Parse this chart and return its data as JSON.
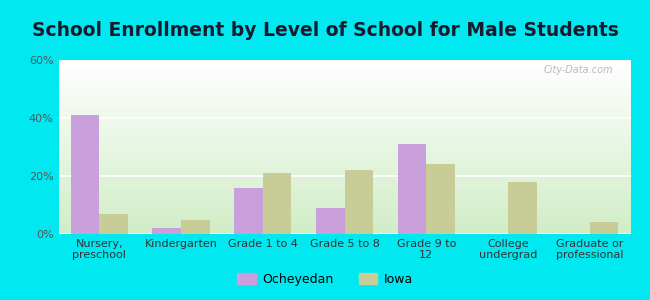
{
  "title": "School Enrollment by Level of School for Male Students",
  "categories": [
    "Nursery,\npreschool",
    "Kindergarten",
    "Grade 1 to 4",
    "Grade 5 to 8",
    "Grade 9 to\n12",
    "College\nundergrad",
    "Graduate or\nprofessional"
  ],
  "ocheyedan": [
    41,
    2,
    16,
    9,
    31,
    0,
    0
  ],
  "iowa": [
    7,
    5,
    21,
    22,
    24,
    18,
    4
  ],
  "bar_color_ocheyedan": "#c9a0dc",
  "bar_color_iowa": "#c8cc96",
  "background_outer": "#00e8f0",
  "ylim": [
    0,
    60
  ],
  "yticks": [
    0,
    20,
    40,
    60
  ],
  "ytick_labels": [
    "0%",
    "20%",
    "40%",
    "60%"
  ],
  "legend_ocheyedan": "Ocheyedan",
  "legend_iowa": "Iowa",
  "bar_width": 0.35,
  "title_fontsize": 13.5,
  "tick_fontsize": 8,
  "legend_fontsize": 9,
  "watermark": "City-Data.com"
}
